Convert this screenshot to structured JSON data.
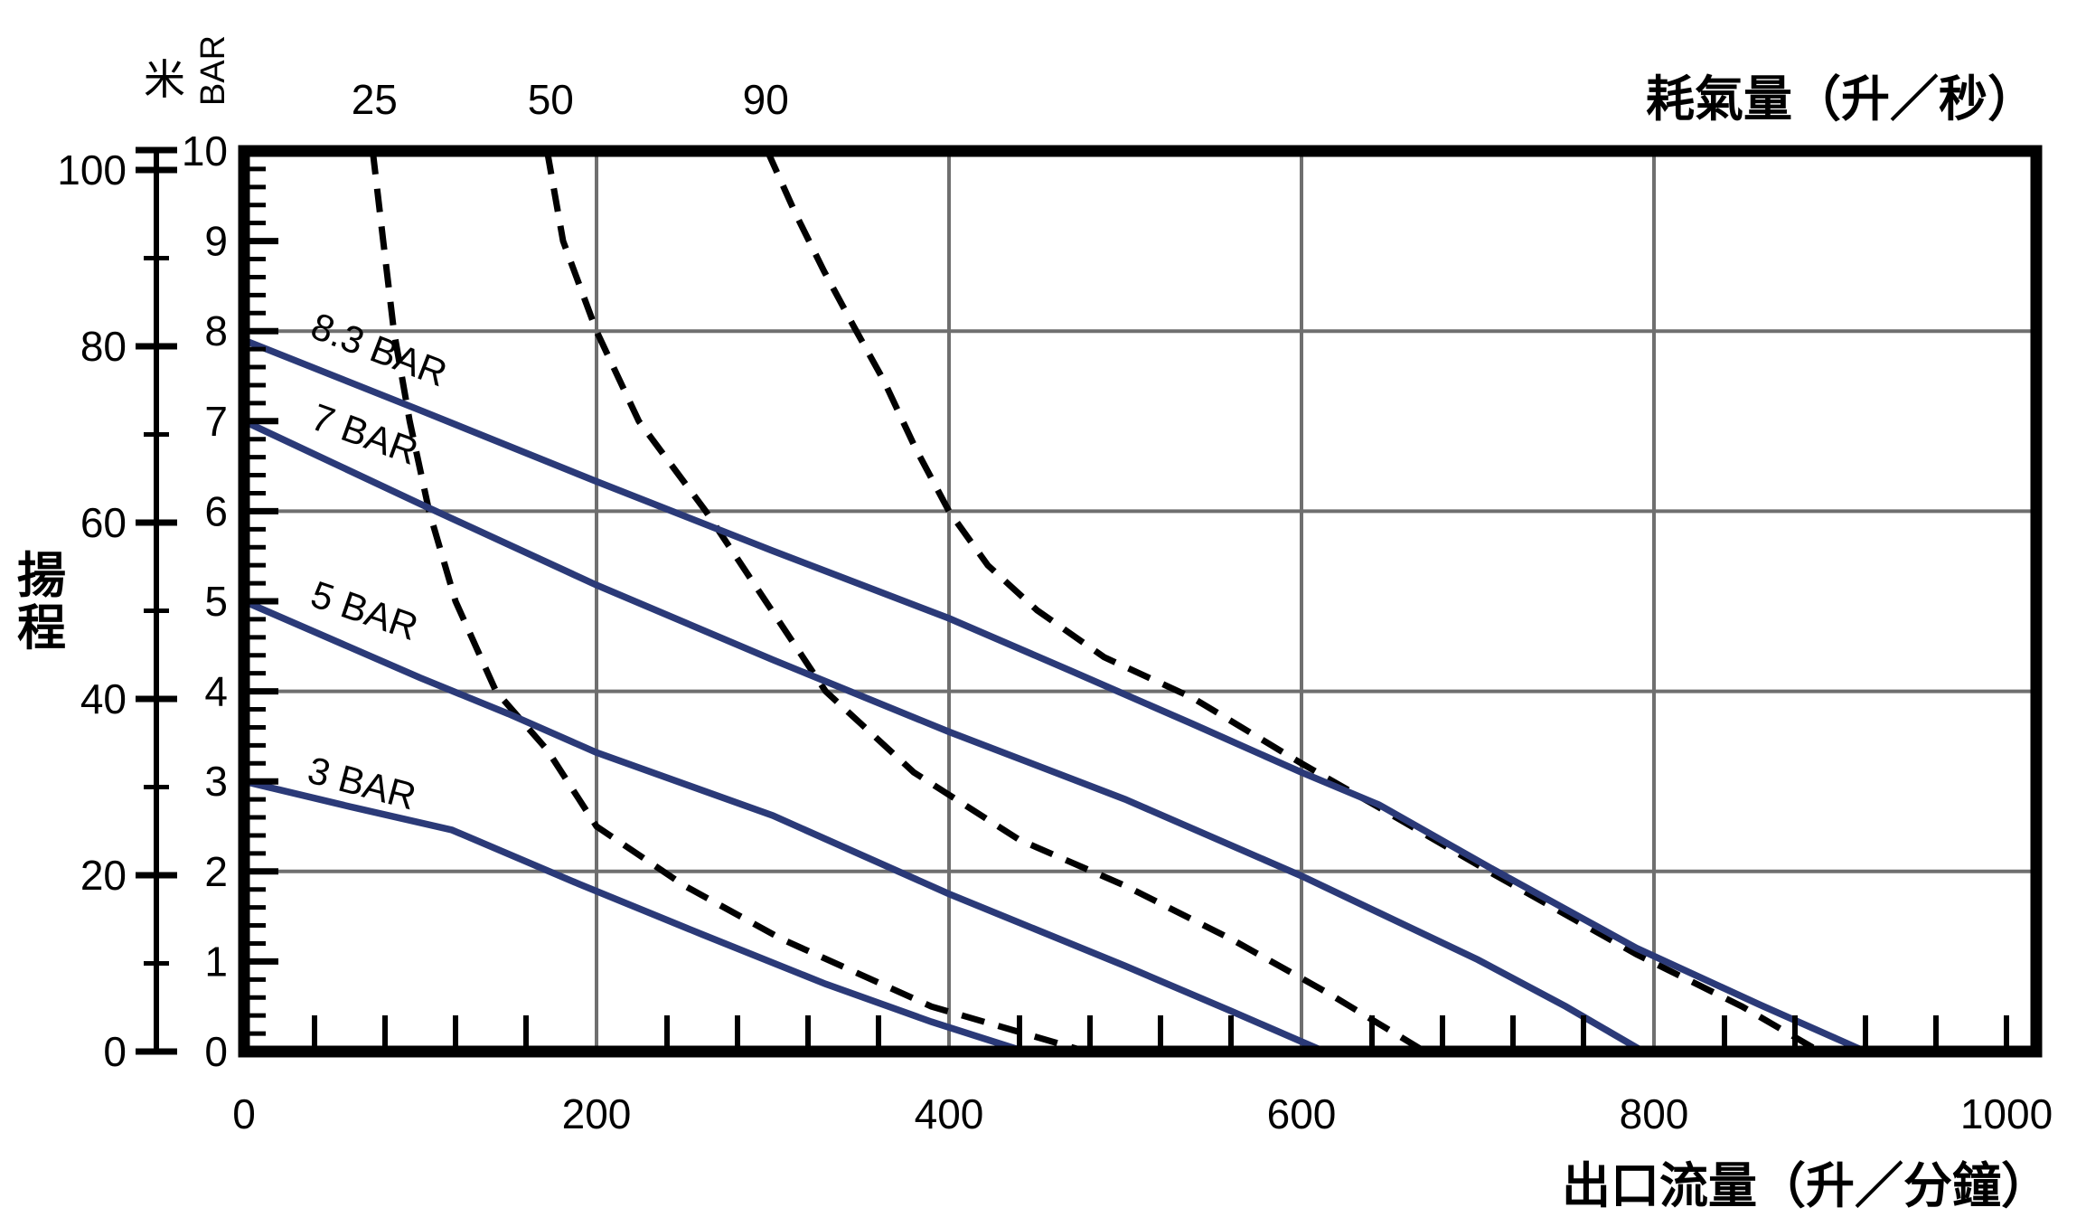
{
  "chart_data": {
    "type": "line",
    "titles": {
      "top_right": "耗氣量（升／秒）",
      "bottom_right": "出口流量（升／分鐘）",
      "left_vertical": "揚程",
      "meter_unit": "米",
      "bar_unit": "BAR"
    },
    "colors": {
      "curve_navy": "#2b3a78",
      "dashed_black": "#000000",
      "grid_gray": "#6f6f6f",
      "axis_black": "#000000",
      "background": "#ffffff"
    },
    "x_axis": {
      "label": "出口流量（升／分鐘）",
      "min": 0,
      "max": 1017,
      "minor_tick_step": 40,
      "major_label_step": 200,
      "tick_labels": [
        0,
        200,
        400,
        600,
        800,
        1000
      ],
      "gridline_values": [
        200,
        400,
        600,
        800
      ]
    },
    "y_axis_bar": {
      "label": "BAR",
      "min": 0,
      "max": 10,
      "minor_tick_step": 0.2,
      "major_tick_step": 1,
      "tick_labels": [
        10,
        9,
        8,
        7,
        6,
        5,
        4,
        3,
        2,
        1,
        0
      ],
      "gridline_values": [
        2,
        4,
        6,
        8
      ]
    },
    "y_axis_meter": {
      "label": "米",
      "min": 0,
      "max": 100,
      "minor_tick_step": 10,
      "major_tick_step": 20,
      "tick_labels": [
        100,
        80,
        60,
        40,
        20,
        0
      ]
    },
    "top_axis_labels": [
      {
        "text": "25",
        "flow": 74
      },
      {
        "text": "50",
        "flow": 174
      },
      {
        "text": "90",
        "flow": 296
      }
    ],
    "series_solid": [
      {
        "name": "head-curve-8.3-bar",
        "label": "8.3 BAR",
        "label_pos": {
          "flow": 74,
          "bar": 7.66,
          "angle": 21
        },
        "points": [
          [
            0,
            7.9
          ],
          [
            100,
            7.12
          ],
          [
            200,
            6.33
          ],
          [
            300,
            5.56
          ],
          [
            400,
            4.81
          ],
          [
            470,
            4.22
          ],
          [
            538,
            3.64
          ],
          [
            600,
            3.1
          ],
          [
            644,
            2.74
          ],
          [
            709,
            2.02
          ],
          [
            790,
            1.15
          ],
          [
            860,
            0.52
          ],
          [
            920,
            0
          ]
        ]
      },
      {
        "name": "head-curve-7-bar",
        "label": "7 BAR",
        "label_pos": {
          "flow": 66,
          "bar": 6.72,
          "angle": 20
        },
        "points": [
          [
            0,
            7.0
          ],
          [
            100,
            6.08
          ],
          [
            200,
            5.18
          ],
          [
            300,
            4.35
          ],
          [
            400,
            3.55
          ],
          [
            500,
            2.8
          ],
          [
            600,
            1.95
          ],
          [
            700,
            1.02
          ],
          [
            750,
            0.5
          ],
          [
            794,
            0
          ]
        ]
      },
      {
        "name": "head-curve-5-bar",
        "label": "5 BAR",
        "label_pos": {
          "flow": 66,
          "bar": 4.76,
          "angle": 19
        },
        "points": [
          [
            0,
            5.0
          ],
          [
            100,
            4.15
          ],
          [
            150,
            3.75
          ],
          [
            200,
            3.32
          ],
          [
            300,
            2.62
          ],
          [
            400,
            1.75
          ],
          [
            500,
            0.95
          ],
          [
            560,
            0.45
          ],
          [
            613,
            0
          ]
        ]
      },
      {
        "name": "head-curve-3-bar",
        "label": "3 BAR",
        "label_pos": {
          "flow": 65,
          "bar": 2.84,
          "angle": 15
        },
        "points": [
          [
            0,
            3.0
          ],
          [
            60,
            2.72
          ],
          [
            118,
            2.46
          ],
          [
            190,
            1.86
          ],
          [
            260,
            1.3
          ],
          [
            330,
            0.75
          ],
          [
            390,
            0.33
          ],
          [
            443,
            0
          ]
        ]
      }
    ],
    "series_dashed": [
      {
        "name": "air-curve-25",
        "label": "25",
        "points": [
          [
            73,
            10
          ],
          [
            79,
            9
          ],
          [
            85,
            8
          ],
          [
            94,
            7
          ],
          [
            105,
            6
          ],
          [
            120,
            5
          ],
          [
            143,
            4
          ],
          [
            172,
            3.35
          ],
          [
            200,
            2.5
          ],
          [
            250,
            1.84
          ],
          [
            305,
            1.25
          ],
          [
            390,
            0.5
          ],
          [
            478,
            0
          ]
        ]
      },
      {
        "name": "air-curve-50",
        "label": "50",
        "points": [
          [
            172,
            10
          ],
          [
            181,
            9
          ],
          [
            200,
            8
          ],
          [
            224,
            7
          ],
          [
            262,
            6
          ],
          [
            296,
            5
          ],
          [
            330,
            4
          ],
          [
            380,
            3.1
          ],
          [
            440,
            2.35
          ],
          [
            500,
            1.84
          ],
          [
            560,
            1.25
          ],
          [
            615,
            0.65
          ],
          [
            670,
            0
          ]
        ]
      },
      {
        "name": "air-curve-90",
        "label": "90",
        "points": [
          [
            297,
            10
          ],
          [
            313,
            9.3
          ],
          [
            329,
            8.67
          ],
          [
            346,
            8.05
          ],
          [
            363,
            7.45
          ],
          [
            381,
            6.7
          ],
          [
            400,
            6.0
          ],
          [
            422,
            5.4
          ],
          [
            450,
            4.9
          ],
          [
            488,
            4.38
          ],
          [
            538,
            3.93
          ],
          [
            600,
            3.2
          ],
          [
            644,
            2.71
          ],
          [
            709,
            1.97
          ],
          [
            790,
            1.08
          ],
          [
            850,
            0.5
          ],
          [
            894,
            0
          ]
        ]
      }
    ]
  }
}
